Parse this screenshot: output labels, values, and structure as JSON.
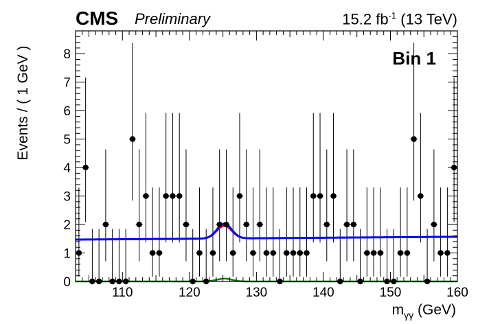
{
  "header": {
    "experiment": "CMS",
    "status": "Preliminary",
    "lumi_value": "15.2 fb",
    "lumi_exp": "-1",
    "energy": " (13 TeV)"
  },
  "chart_data": {
    "type": "scatter",
    "annotation": "Bin 1",
    "xlabel_main": "m",
    "xlabel_sub": "γγ",
    "xlabel_unit": " (GeV)",
    "ylabel": "Events / ( 1 GeV )",
    "xlim": [
      103,
      160
    ],
    "ylim": [
      0,
      8.8
    ],
    "x_ticks": [
      110,
      120,
      130,
      140,
      150,
      160
    ],
    "y_ticks": [
      0,
      1,
      2,
      3,
      4,
      5,
      6,
      7,
      8
    ],
    "colors": {
      "points": "#000000",
      "total_fit": "#0000ff",
      "signal_plus_bkg": "#ff0000",
      "signal": "#008000"
    },
    "points": {
      "x": [
        103.5,
        104.5,
        105.5,
        106.5,
        107.5,
        108.5,
        109.5,
        110.5,
        111.5,
        112.5,
        113.5,
        114.5,
        115.5,
        116.5,
        117.5,
        118.5,
        119.5,
        120.5,
        121.5,
        122.5,
        123.5,
        124.5,
        125.5,
        126.5,
        127.5,
        128.5,
        129.5,
        130.5,
        131.5,
        132.5,
        133.5,
        134.5,
        135.5,
        136.5,
        137.5,
        138.5,
        139.5,
        140.5,
        141.5,
        142.5,
        143.5,
        144.5,
        145.5,
        146.5,
        147.5,
        148.5,
        149.5,
        150.5,
        151.5,
        152.5,
        153.5,
        154.5,
        155.5,
        156.5,
        157.5,
        158.5,
        159.5
      ],
      "y": [
        1,
        4,
        0,
        0,
        2,
        0,
        0,
        0,
        5,
        2,
        3,
        1,
        1,
        3,
        3,
        3,
        2,
        0,
        1,
        0,
        1,
        2,
        2,
        1,
        3,
        2,
        1,
        2,
        1,
        1,
        0,
        1,
        1,
        1,
        1,
        3,
        3,
        2,
        3,
        0,
        2,
        2,
        0,
        1,
        1,
        1,
        0,
        0,
        1,
        1,
        5,
        3,
        0,
        2,
        1,
        1,
        4
      ]
    },
    "background_level": {
      "x": [
        103,
        160
      ],
      "y": [
        1.47,
        1.57
      ]
    },
    "signal_peak": {
      "mass": 125.2,
      "width": 1.1,
      "amplitude": 0.52
    },
    "signal_component_peak": {
      "mass": 125.2,
      "width": 1.1,
      "amplitude": 0.1
    }
  }
}
